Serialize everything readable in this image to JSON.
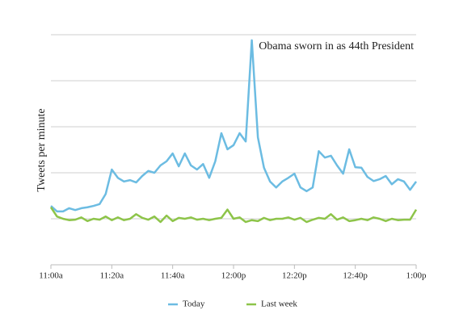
{
  "chart_data": {
    "type": "line",
    "annotation": "Obama sworn in as 44th President",
    "y_label": "Tweets per minute",
    "x": [
      0,
      2,
      4,
      6,
      8,
      10,
      12,
      14,
      16,
      18,
      20,
      22,
      24,
      26,
      28,
      30,
      32,
      34,
      36,
      38,
      40,
      42,
      44,
      46,
      48,
      50,
      52,
      54,
      56,
      58,
      60,
      62,
      64,
      66,
      68,
      70,
      72,
      74,
      76,
      78,
      80,
      82,
      84,
      86,
      88,
      90,
      92,
      94,
      96,
      98,
      100,
      102,
      104,
      106,
      108,
      110,
      112,
      114,
      116,
      118,
      120
    ],
    "xlim": [
      0,
      120
    ],
    "xticks": [
      {
        "value": 0,
        "label": "11:00a"
      },
      {
        "value": 20,
        "label": "11:20a"
      },
      {
        "value": 40,
        "label": "11:40a"
      },
      {
        "value": 60,
        "label": "12:00p"
      },
      {
        "value": 80,
        "label": "12:20p"
      },
      {
        "value": 100,
        "label": "12:40p"
      },
      {
        "value": 120,
        "label": "1:00p"
      }
    ],
    "ylim": [
      0,
      5
    ],
    "grid_lines": [
      1,
      2,
      3,
      4,
      5
    ],
    "legend": "bottom",
    "series": [
      {
        "name": "Today",
        "color": "#6cbce2",
        "values": [
          1.28,
          1.16,
          1.16,
          1.23,
          1.19,
          1.23,
          1.25,
          1.28,
          1.32,
          1.54,
          2.07,
          1.89,
          1.81,
          1.84,
          1.79,
          1.93,
          2.04,
          2.0,
          2.16,
          2.25,
          2.42,
          2.14,
          2.42,
          2.16,
          2.07,
          2.19,
          1.89,
          2.25,
          2.86,
          2.51,
          2.6,
          2.86,
          2.68,
          4.88,
          2.77,
          2.11,
          1.81,
          1.68,
          1.81,
          1.89,
          1.98,
          1.68,
          1.6,
          1.68,
          2.47,
          2.33,
          2.37,
          2.16,
          1.98,
          2.51,
          2.12,
          2.11,
          1.91,
          1.82,
          1.86,
          1.93,
          1.75,
          1.86,
          1.81,
          1.63,
          1.81
        ]
      },
      {
        "name": "Last week",
        "color": "#8dc449",
        "values": [
          1.25,
          1.05,
          1.0,
          0.97,
          0.98,
          1.03,
          0.95,
          1.0,
          0.98,
          1.05,
          0.97,
          1.03,
          0.97,
          1.0,
          1.1,
          1.02,
          0.98,
          1.05,
          0.93,
          1.07,
          0.95,
          1.02,
          1.0,
          1.03,
          0.98,
          1.0,
          0.97,
          1.0,
          1.02,
          1.2,
          1.0,
          1.03,
          0.93,
          0.97,
          0.95,
          1.02,
          0.97,
          1.0,
          1.0,
          1.03,
          0.98,
          1.02,
          0.93,
          0.98,
          1.02,
          1.0,
          1.1,
          0.98,
          1.03,
          0.95,
          0.97,
          1.0,
          0.97,
          1.03,
          1.0,
          0.95,
          1.0,
          0.97,
          0.98,
          0.98,
          1.2
        ]
      }
    ]
  }
}
